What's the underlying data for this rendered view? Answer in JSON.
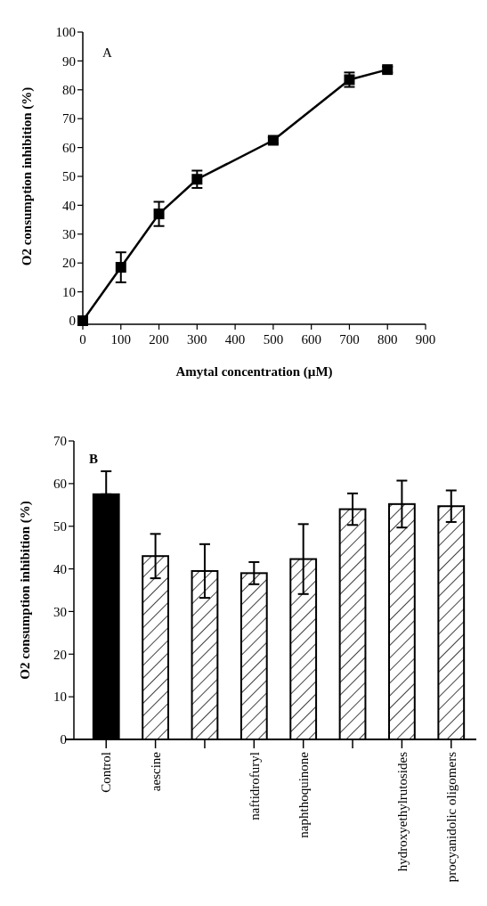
{
  "chart_data": [
    {
      "type": "line",
      "xlabel": "Amytal concentration (µM)",
      "ylabel": "O2 consumption inhibition (%)",
      "annotations": [
        "A"
      ],
      "x": [
        0,
        100,
        200,
        300,
        500,
        700,
        800
      ],
      "series": [
        {
          "color": "#000000",
          "values": [
            0,
            18.5,
            37,
            49,
            62.5,
            83.5,
            87
          ],
          "errors": [
            null,
            5.2,
            4.2,
            3,
            1,
            2.5,
            1
          ]
        }
      ],
      "xlim": [
        0,
        900
      ],
      "xticks": [
        0,
        100,
        200,
        300,
        400,
        500,
        600,
        700,
        800,
        900
      ],
      "ylim": [
        0,
        100
      ],
      "yticks": [
        0,
        10,
        20,
        30,
        40,
        50,
        60,
        70,
        80,
        90,
        100
      ],
      "marker": "square",
      "line_style": "solid"
    },
    {
      "type": "bar",
      "ylabel": "O2 consumption inhibition (%)",
      "annotations": [
        "B"
      ],
      "categories": [
        "Control",
        "aescine",
        null,
        "naftidrofuryl",
        "naphthoquinone",
        null,
        "hydroxyethylrutosides",
        "procyanidolic oligomers"
      ],
      "values": [
        57.5,
        43,
        39.5,
        39,
        42.3,
        54,
        55.2,
        54.7
      ],
      "colors": [
        "#000000",
        "#ffffff",
        "#ffffff",
        "#ffffff",
        "#ffffff",
        "#ffffff",
        "#ffffff",
        "#ffffff"
      ],
      "errors": [
        [
          57.5,
          62.9
        ],
        5.2,
        6.3,
        2.6,
        8.2,
        3.7,
        5.5,
        3.7
      ],
      "ylim": [
        0,
        70
      ],
      "yticks": [
        0,
        10,
        20,
        30,
        40,
        50,
        60,
        70
      ]
    }
  ]
}
